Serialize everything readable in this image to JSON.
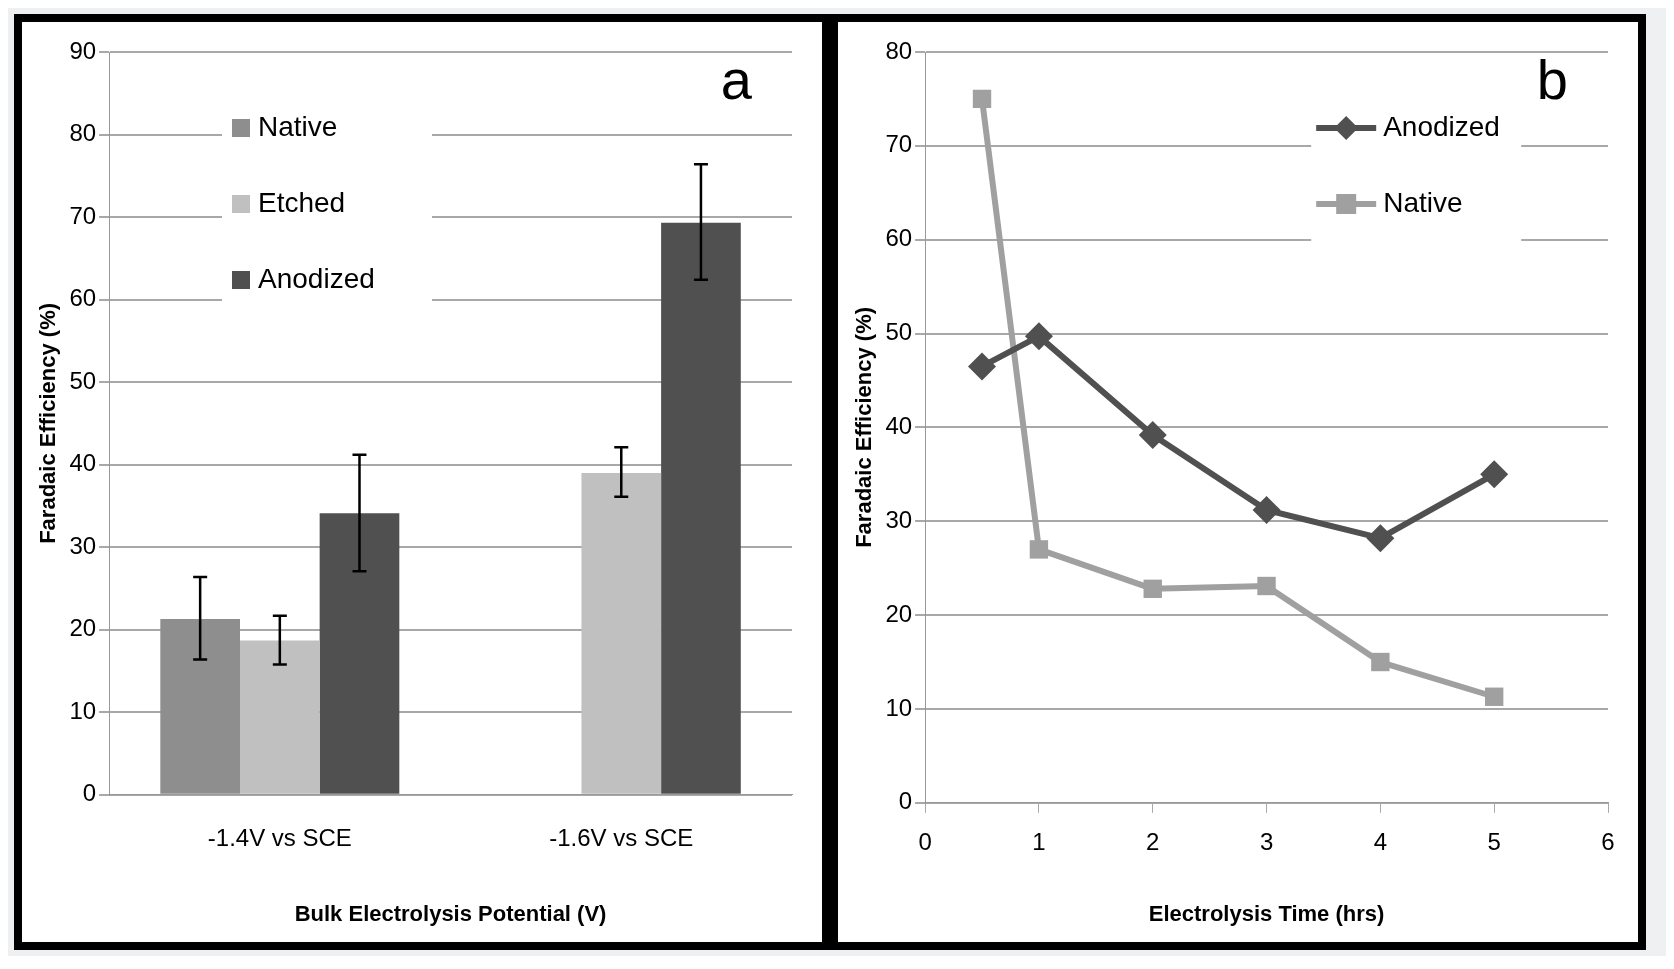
{
  "chart_data": [
    {
      "type": "bar",
      "annotations": [
        "a"
      ],
      "xlabel": "Bulk Electrolysis Potential (V)",
      "ylabel": "Faradaic Efficiency (%)",
      "categories": [
        "-1.4V vs SCE",
        "-1.6V vs SCE"
      ],
      "series": [
        {
          "name": "Native",
          "color": "#8e8e8e",
          "values": [
            21.3,
            null
          ],
          "errors": [
            [
              16.4,
              26.4
            ],
            null
          ]
        },
        {
          "name": "Etched",
          "color": "#c0c0c0",
          "values": [
            18.7,
            39
          ],
          "errors": [
            [
              15.8,
              21.7
            ],
            [
              36.1,
              42.1
            ]
          ]
        },
        {
          "name": "Anodized",
          "color": "#505050",
          "values": [
            34.1,
            69.3
          ],
          "errors": [
            [
              27.1,
              41.2
            ],
            [
              62.4,
              76.4
            ]
          ]
        }
      ],
      "ylim": [
        0,
        90
      ],
      "yticks": [
        0,
        10,
        20,
        30,
        40,
        50,
        60,
        70,
        80,
        90
      ],
      "grid": "y",
      "legend": "top left"
    },
    {
      "type": "line",
      "annotations": [
        "b"
      ],
      "xlabel": "Electrolysis Time (hrs)",
      "ylabel": "Faradaic Efficiency (%)",
      "series": [
        {
          "name": "Anodized",
          "color": "#505050",
          "marker": "diamond",
          "x": [
            0.5,
            1,
            2,
            3,
            4,
            5
          ],
          "values": [
            46.5,
            49.7,
            39.2,
            31.2,
            28.2,
            35
          ]
        },
        {
          "name": "Native",
          "color": "#a0a0a0",
          "marker": "square",
          "x": [
            0.5,
            1,
            2,
            3,
            4,
            5
          ],
          "values": [
            75,
            27,
            22.8,
            23.1,
            15,
            11.3
          ]
        }
      ],
      "xlim": [
        0,
        6
      ],
      "xticks": [
        0,
        1,
        2,
        3,
        4,
        5,
        6
      ],
      "ylim": [
        0,
        80
      ],
      "yticks": [
        0,
        10,
        20,
        30,
        40,
        50,
        60,
        70,
        80
      ],
      "grid": "y",
      "legend": "top right"
    }
  ]
}
